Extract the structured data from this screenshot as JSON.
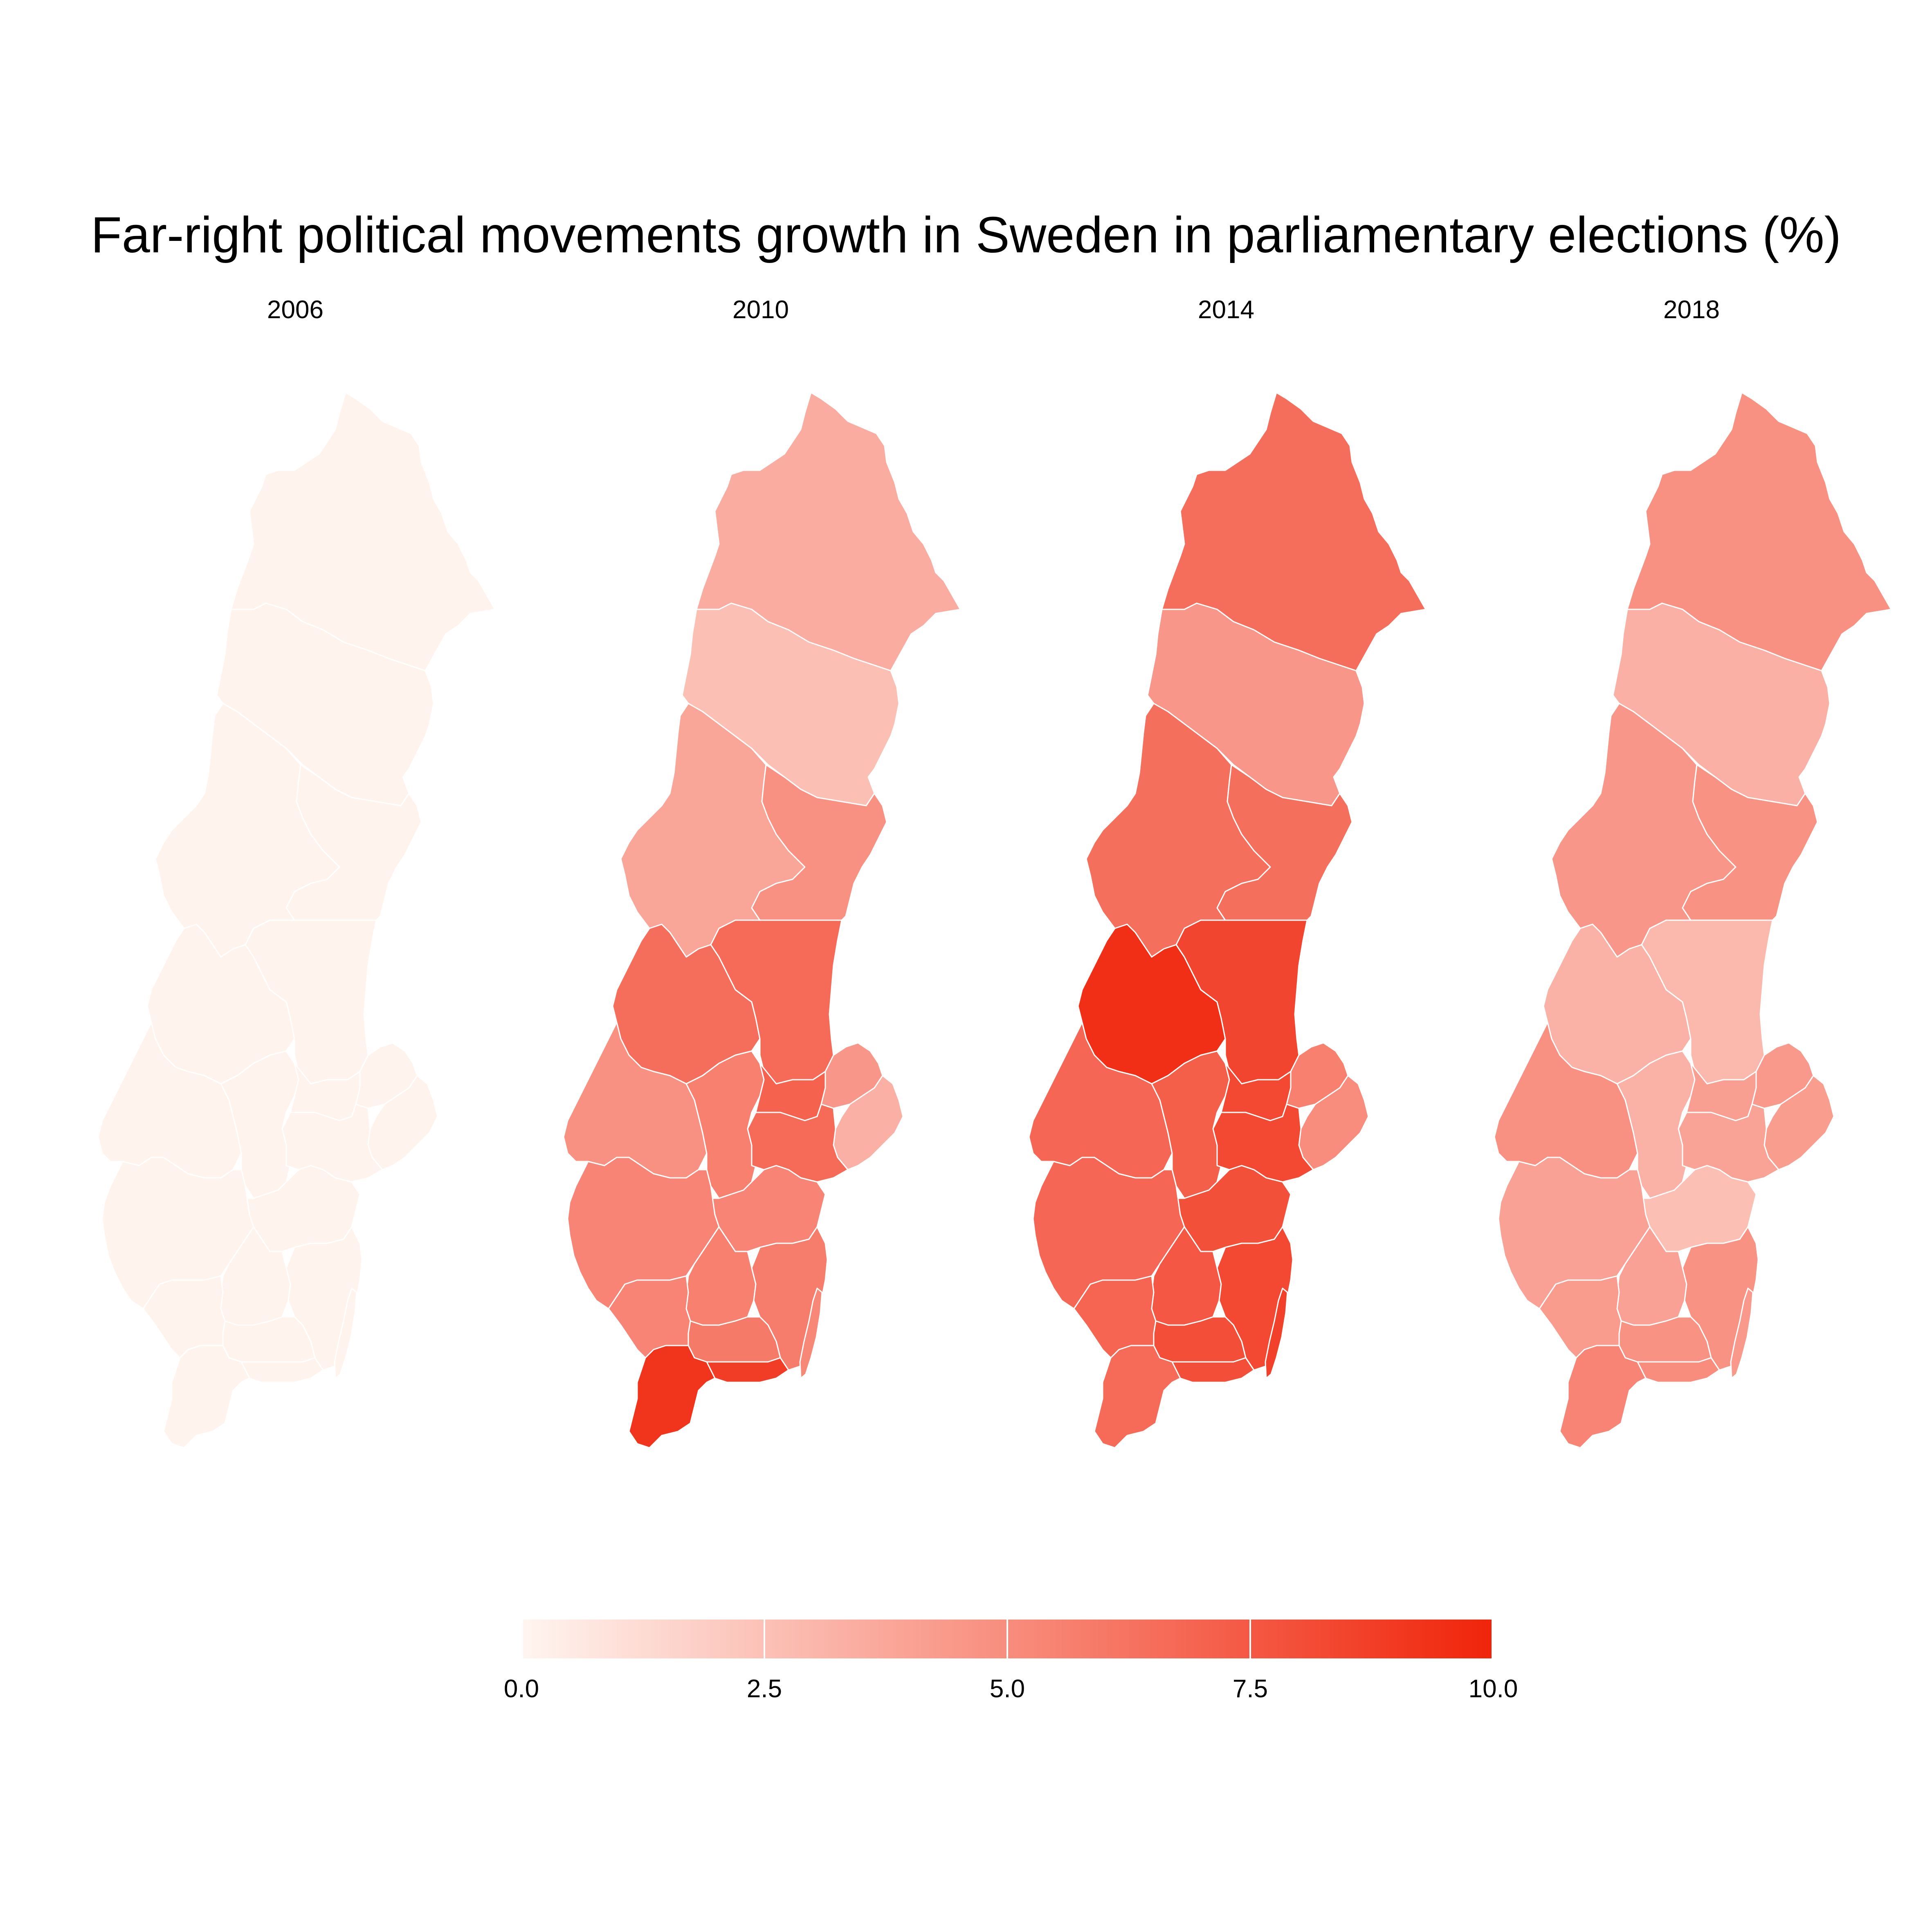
{
  "title": "Far-right political movements growth in Sweden in parliamentary elections (%)",
  "colors": {
    "low": "#fff5f0",
    "high": "#f0240a",
    "border": "#ffffff"
  },
  "legend": {
    "min": 0,
    "max": 10,
    "ticks": [
      "0.0",
      "2.5",
      "5.0",
      "7.5",
      "10.0"
    ]
  },
  "chart_data": {
    "type": "heatmap",
    "kind": "choropleth",
    "title": "Far-right political movements growth in Sweden in parliamentary elections (%)",
    "scale": {
      "min": 0,
      "max": 10
    },
    "panels": [
      {
        "year": "2006",
        "regions": {
          "norrbotten": 0.1,
          "vasterbotten": 0.1,
          "jamtland": 0.1,
          "vasternorrland": 0.1,
          "dalarna": 0.1,
          "gavleborg": 0.1,
          "varmland": 0.1,
          "orebro": 0.1,
          "vastmanland": 0.1,
          "uppsala": 0.1,
          "stockholm": 0.1,
          "sodermanland": 0.1,
          "ostergotland": 0.1,
          "vastra_gotaland": 0.1,
          "jonkoping": 0.1,
          "kalmar": 0.1,
          "kronoberg": 0.1,
          "halland": 0.1,
          "blekinge": 0.1,
          "skane": 0.1,
          "gotland": 0.1
        }
      },
      {
        "year": "2010",
        "regions": {
          "norrbotten": 3.5,
          "vasterbotten": 2.6,
          "jamtland": 3.8,
          "vasternorrland": 4.8,
          "dalarna": 6.5,
          "gavleborg": 6.6,
          "varmland": 4.8,
          "orebro": 5.6,
          "vastmanland": 7.0,
          "uppsala": 4.5,
          "stockholm": 3.3,
          "sodermanland": 6.6,
          "ostergotland": 5.4,
          "vastra_gotaland": 5.4,
          "jonkoping": 5.6,
          "kalmar": 5.8,
          "kronoberg": 5.9,
          "halland": 5.4,
          "blekinge": 8.8,
          "skane": 9.2,
          "gotland": 5.2
        }
      },
      {
        "year": "2014",
        "regions": {
          "norrbotten": 6.5,
          "vasterbotten": 4.5,
          "jamtland": 6.4,
          "vasternorrland": 6.4,
          "dalarna": 9.5,
          "gavleborg": 8.4,
          "varmland": 6.8,
          "orebro": 7.2,
          "vastmanland": 8.3,
          "uppsala": 5.6,
          "stockholm": 5.0,
          "sodermanland": 8.3,
          "ostergotland": 7.9,
          "vastra_gotaland": 6.8,
          "jonkoping": 7.5,
          "kalmar": 8.3,
          "kronoberg": 8.0,
          "halland": 6.9,
          "blekinge": 8.0,
          "skane": 6.6,
          "gotland": 8.6
        }
      },
      {
        "year": "2018",
        "regions": {
          "norrbotten": 4.8,
          "vasterbotten": 3.3,
          "jamtland": 4.5,
          "vasternorrland": 4.7,
          "dalarna": 3.2,
          "gavleborg": 2.9,
          "varmland": 4.8,
          "orebro": 3.2,
          "vastmanland": 4.1,
          "uppsala": 4.4,
          "stockholm": 4.2,
          "sodermanland": 3.9,
          "ostergotland": 2.6,
          "vastra_gotaland": 4.0,
          "jonkoping": 4.0,
          "kalmar": 4.7,
          "kronoberg": 4.7,
          "halland": 4.3,
          "blekinge": 5.0,
          "skane": 5.4,
          "gotland": 4.4
        }
      }
    ]
  }
}
